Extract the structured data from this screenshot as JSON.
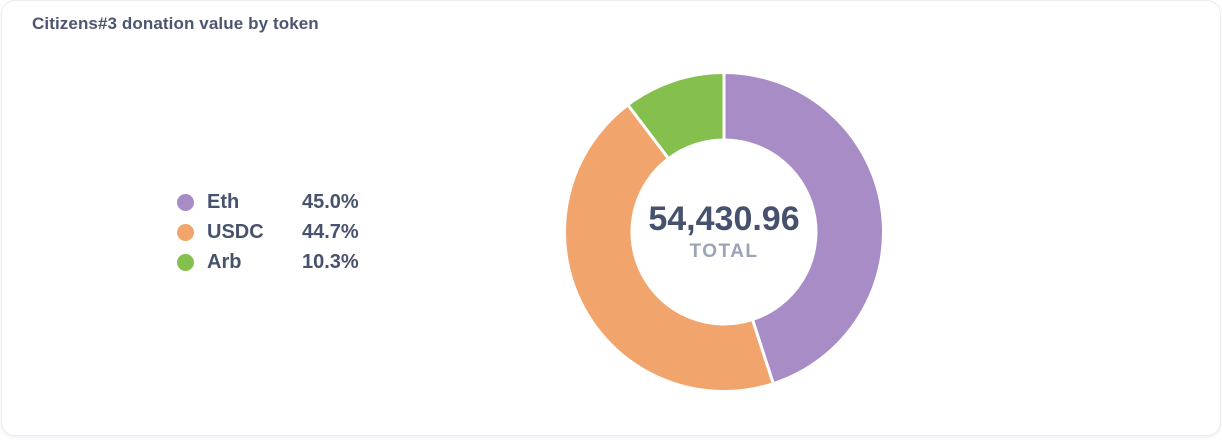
{
  "card": {
    "title": "Citizens#3 donation value by token"
  },
  "chart_data": {
    "type": "pie",
    "style": "donut",
    "title": "Citizens#3 donation value by token",
    "center_value": "54,430.96",
    "center_label": "TOTAL",
    "direction": "clockwise",
    "start_angle_deg": 0,
    "inner_radius_ratio": 0.57,
    "legend_position": "left",
    "separator_color": "#ffffff",
    "series": [
      {
        "name": "Eth",
        "percent": 45.0,
        "percent_label": "45.0%",
        "color": "#a88cc6"
      },
      {
        "name": "USDC",
        "percent": 44.7,
        "percent_label": "44.7%",
        "color": "#f2a46d"
      },
      {
        "name": "Arb",
        "percent": 10.3,
        "percent_label": "10.3%",
        "color": "#85c04e"
      }
    ]
  }
}
